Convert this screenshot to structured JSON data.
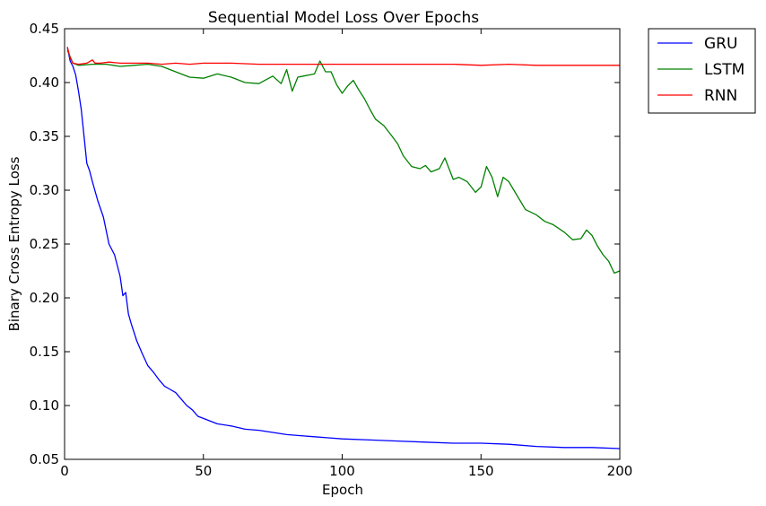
{
  "chart_data": {
    "type": "line",
    "title": "Sequential Model Loss Over Epochs",
    "xlabel": "Epoch",
    "ylabel": "Binary Cross Entropy Loss",
    "xlim": [
      0,
      200
    ],
    "ylim": [
      0.05,
      0.45
    ],
    "x_ticks": [
      0,
      50,
      100,
      150,
      200
    ],
    "x_tick_labels": [
      "0",
      "50",
      "100",
      "150",
      "200"
    ],
    "y_ticks": [
      0.05,
      0.1,
      0.15,
      0.2,
      0.25,
      0.3,
      0.35,
      0.4,
      0.45
    ],
    "y_tick_labels": [
      "0.05",
      "0.10",
      "0.15",
      "0.20",
      "0.25",
      "0.30",
      "0.35",
      "0.40",
      "0.45"
    ],
    "grid": false,
    "legend_position": "outside-top-right",
    "series": [
      {
        "name": "GRU",
        "color": "#0000ff",
        "x": [
          1,
          2,
          3,
          4,
          5,
          6,
          7,
          8,
          9,
          10,
          12,
          14,
          16,
          18,
          20,
          21,
          22,
          23,
          24,
          26,
          28,
          30,
          32,
          34,
          36,
          38,
          40,
          42,
          44,
          46,
          48,
          50,
          55,
          60,
          65,
          70,
          75,
          80,
          85,
          90,
          95,
          100,
          110,
          120,
          130,
          140,
          150,
          160,
          170,
          180,
          190,
          200
        ],
        "y": [
          0.433,
          0.42,
          0.415,
          0.407,
          0.392,
          0.375,
          0.35,
          0.325,
          0.318,
          0.308,
          0.29,
          0.275,
          0.25,
          0.24,
          0.22,
          0.202,
          0.205,
          0.185,
          0.176,
          0.16,
          0.148,
          0.137,
          0.131,
          0.124,
          0.118,
          0.115,
          0.112,
          0.106,
          0.1,
          0.096,
          0.09,
          0.088,
          0.083,
          0.081,
          0.078,
          0.077,
          0.075,
          0.073,
          0.072,
          0.071,
          0.07,
          0.069,
          0.068,
          0.067,
          0.066,
          0.065,
          0.065,
          0.064,
          0.062,
          0.061,
          0.061,
          0.06
        ]
      },
      {
        "name": "LSTM",
        "color": "#008000",
        "x": [
          1,
          3,
          5,
          10,
          15,
          20,
          25,
          30,
          35,
          40,
          45,
          50,
          55,
          60,
          65,
          70,
          75,
          78,
          80,
          82,
          84,
          86,
          88,
          90,
          92,
          94,
          96,
          98,
          100,
          102,
          104,
          106,
          108,
          110,
          112,
          115,
          118,
          120,
          122,
          125,
          128,
          130,
          132,
          135,
          137,
          140,
          142,
          145,
          148,
          150,
          152,
          154,
          156,
          158,
          160,
          163,
          166,
          170,
          173,
          176,
          180,
          183,
          186,
          188,
          190,
          192,
          194,
          196,
          198,
          200
        ],
        "y": [
          0.43,
          0.418,
          0.416,
          0.417,
          0.417,
          0.415,
          0.416,
          0.417,
          0.415,
          0.41,
          0.405,
          0.404,
          0.408,
          0.405,
          0.4,
          0.399,
          0.406,
          0.399,
          0.412,
          0.392,
          0.405,
          0.406,
          0.407,
          0.408,
          0.42,
          0.41,
          0.41,
          0.398,
          0.39,
          0.397,
          0.402,
          0.393,
          0.385,
          0.375,
          0.366,
          0.36,
          0.35,
          0.343,
          0.332,
          0.322,
          0.32,
          0.323,
          0.317,
          0.32,
          0.33,
          0.31,
          0.312,
          0.308,
          0.298,
          0.303,
          0.322,
          0.312,
          0.294,
          0.312,
          0.308,
          0.295,
          0.282,
          0.277,
          0.271,
          0.268,
          0.261,
          0.254,
          0.255,
          0.263,
          0.258,
          0.248,
          0.24,
          0.234,
          0.223,
          0.225
        ]
      },
      {
        "name": "RNN",
        "color": "#ff0000",
        "x": [
          1,
          2,
          3,
          5,
          8,
          10,
          11,
          13,
          16,
          20,
          25,
          30,
          35,
          40,
          45,
          50,
          60,
          70,
          80,
          90,
          100,
          110,
          120,
          130,
          140,
          150,
          160,
          170,
          180,
          190,
          200
        ],
        "y": [
          0.433,
          0.423,
          0.418,
          0.417,
          0.418,
          0.421,
          0.418,
          0.418,
          0.419,
          0.418,
          0.418,
          0.418,
          0.417,
          0.418,
          0.417,
          0.418,
          0.418,
          0.417,
          0.417,
          0.417,
          0.417,
          0.417,
          0.417,
          0.417,
          0.417,
          0.416,
          0.417,
          0.416,
          0.416,
          0.416,
          0.416
        ]
      }
    ]
  }
}
